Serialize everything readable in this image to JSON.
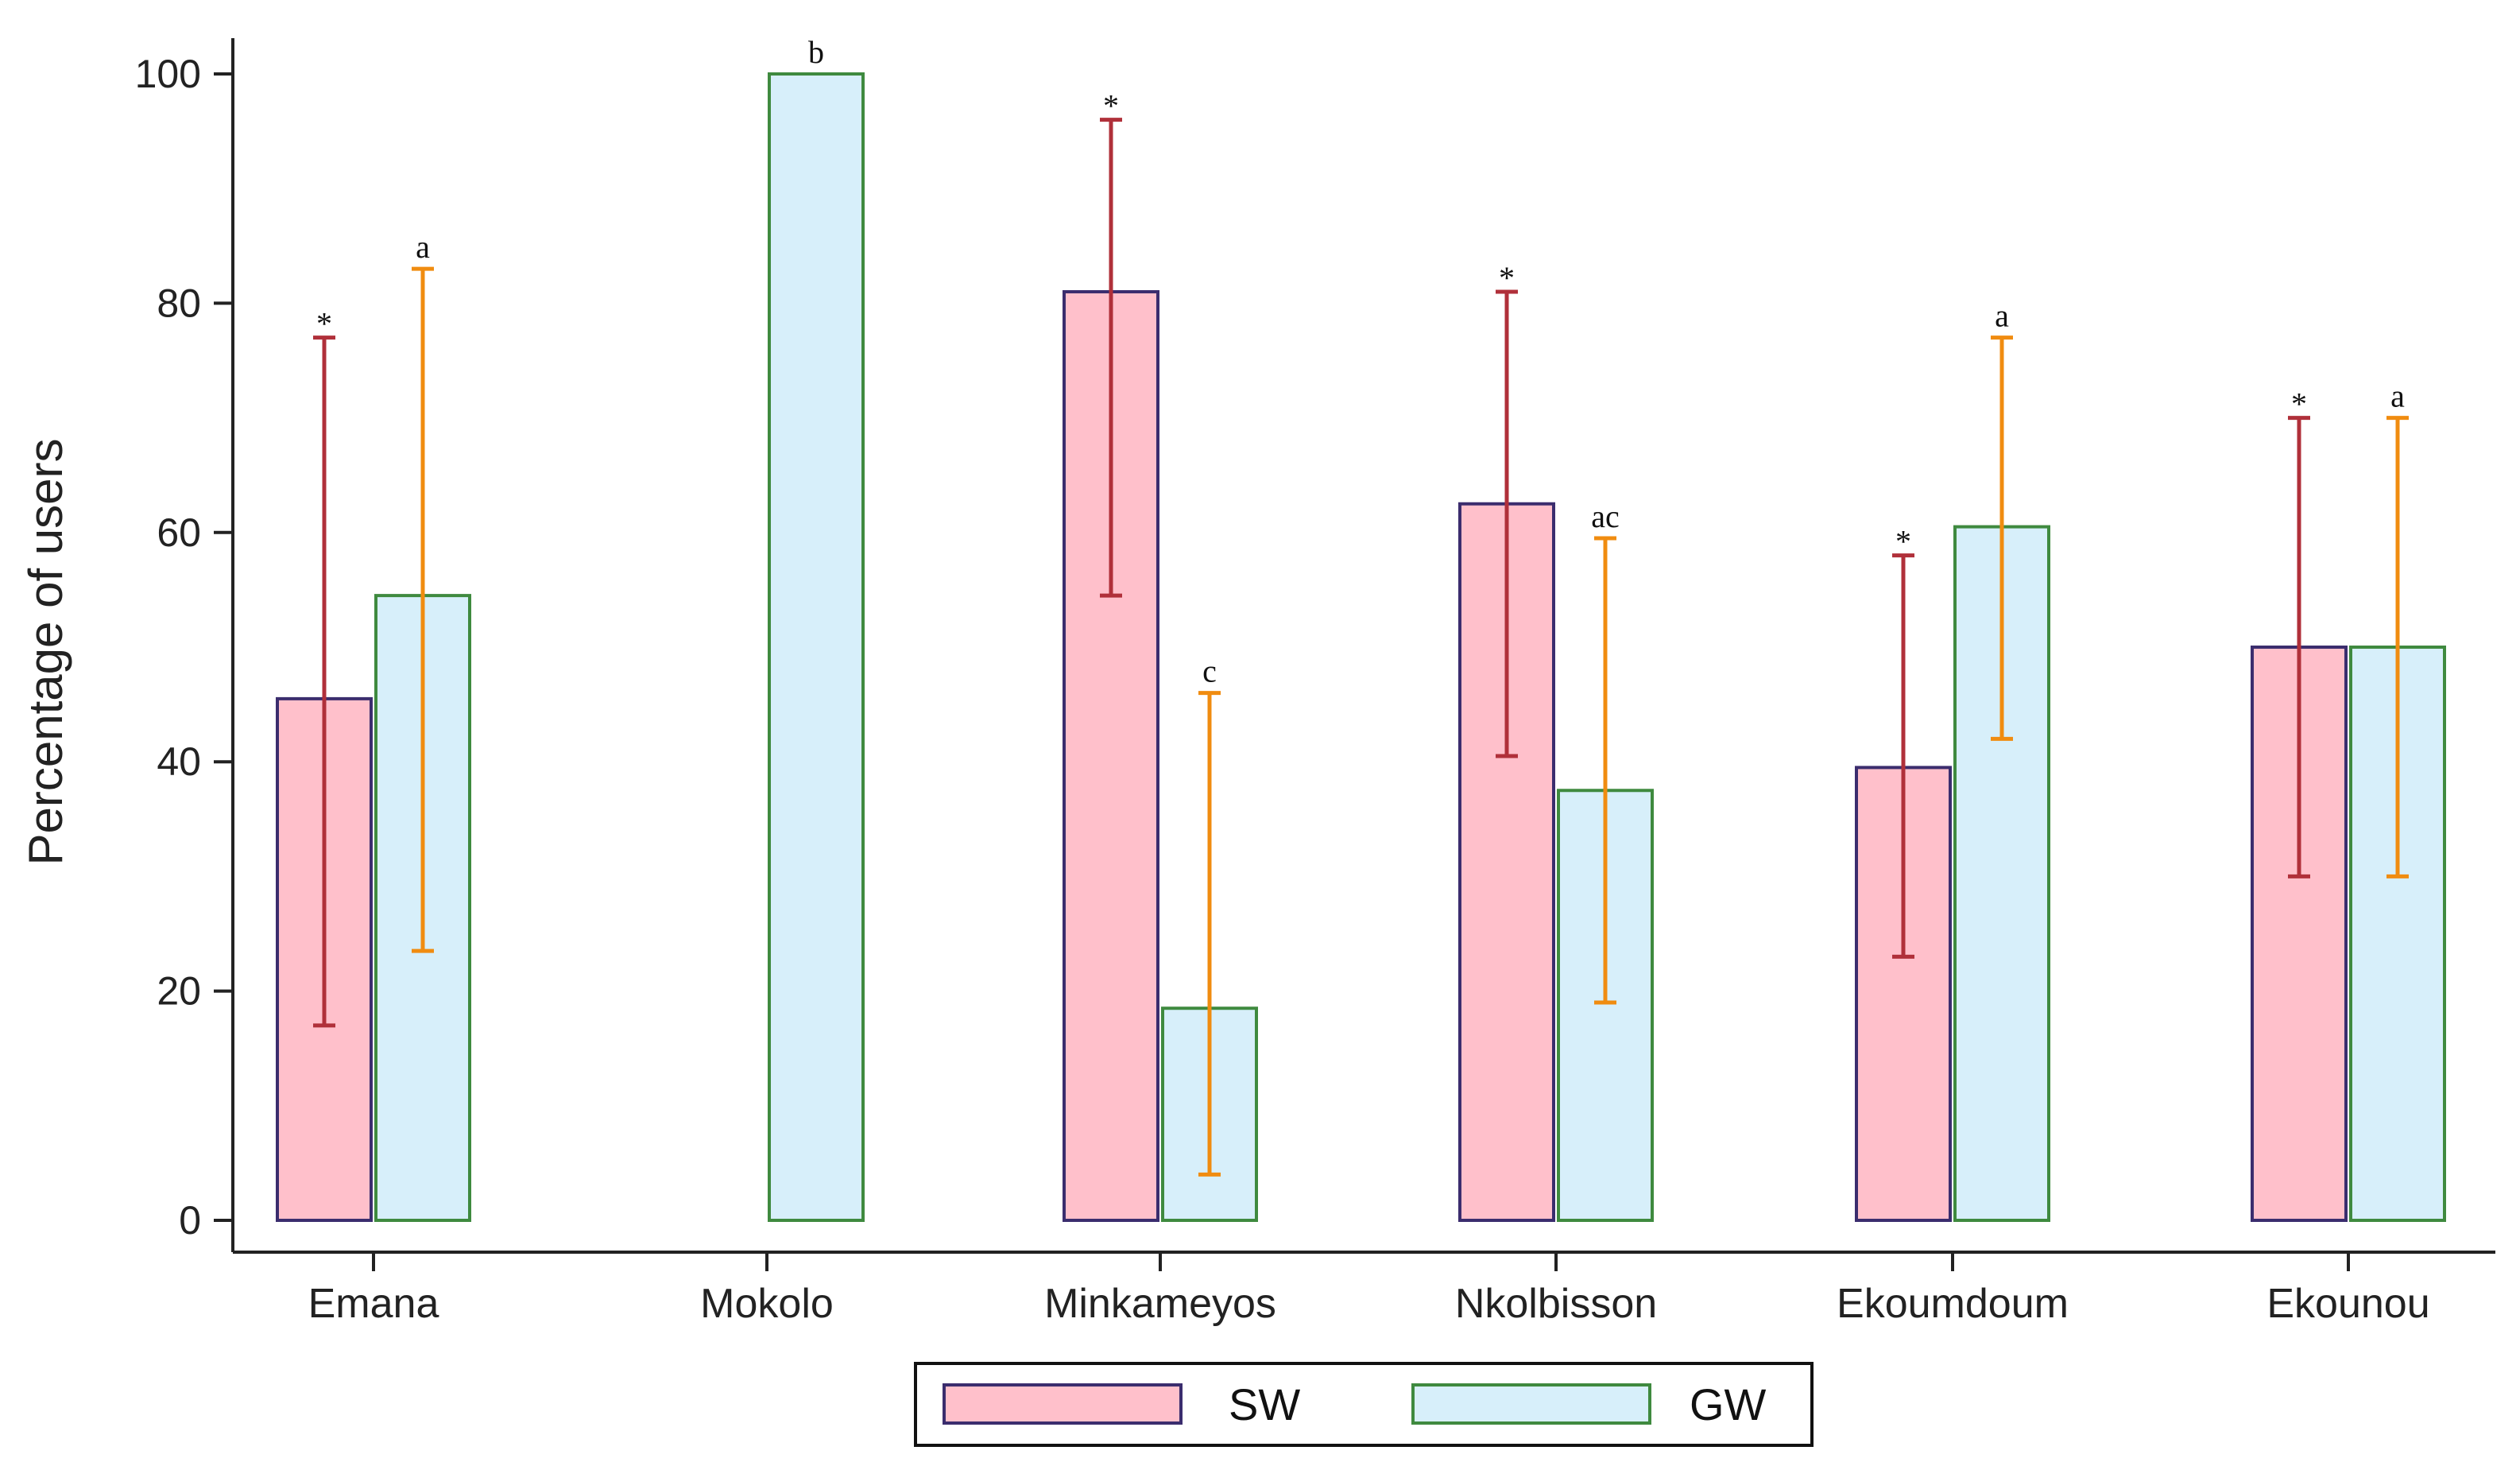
{
  "chart_data": {
    "type": "bar",
    "title": "",
    "xlabel": "",
    "ylabel": "Percentage of users",
    "ylim": [
      0,
      100
    ],
    "yticks": [
      0,
      20,
      40,
      60,
      80,
      100
    ],
    "categories": [
      "Emana",
      "Mokolo",
      "Minkameyos",
      "Nkolbisson",
      "Ekoumdoum",
      "Ekounou"
    ],
    "series": [
      {
        "name": "SW",
        "color": "#ffc0cb",
        "edge_color": "#3b2d6e",
        "error_color": "#b0303a",
        "values": [
          45.5,
          null,
          81,
          62.5,
          39.5,
          50
        ],
        "err_low": [
          17,
          null,
          54.5,
          40.5,
          23,
          30
        ],
        "err_high": [
          77,
          null,
          96,
          81,
          58,
          70
        ],
        "sig_labels": [
          "*",
          "",
          "*",
          "*",
          "*",
          "*"
        ]
      },
      {
        "name": "GW",
        "color": "#d7effa",
        "edge_color": "#3f8a3f",
        "error_color": "#f08c10",
        "values": [
          54.5,
          100,
          18.5,
          37.5,
          60.5,
          50
        ],
        "err_low": [
          23.5,
          null,
          4,
          19,
          42,
          30
        ],
        "err_high": [
          83,
          null,
          46,
          59.5,
          77,
          70
        ],
        "sig_labels": [
          "a",
          "b",
          "c",
          "ac",
          "a",
          "a"
        ]
      }
    ],
    "legend": {
      "placement": "bottom-center",
      "entries": [
        "SW",
        "GW"
      ]
    }
  }
}
